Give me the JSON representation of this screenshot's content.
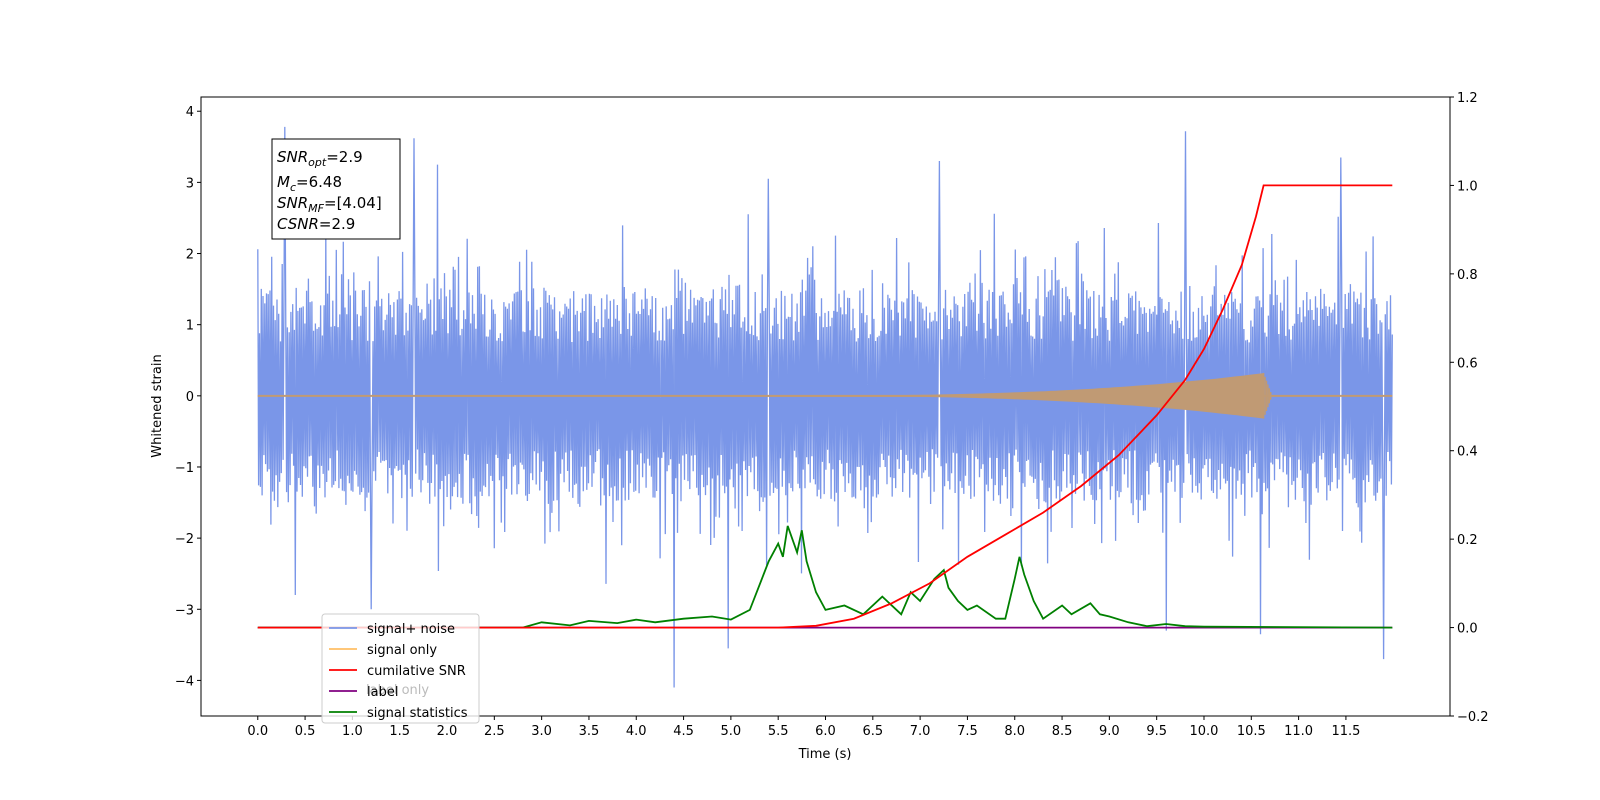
{
  "chart_data": {
    "type": "line",
    "xlabel": "Time (s)",
    "ylabel": "Whitened strain",
    "xlim": [
      -0.6,
      12.6
    ],
    "ylim": [
      -4.5,
      4.2
    ],
    "ylim_right": [
      -0.2,
      1.2
    ],
    "x_ticks": [
      "0.0",
      "0.5",
      "1.0",
      "1.5",
      "2.0",
      "2.5",
      "3.0",
      "3.5",
      "4.0",
      "4.5",
      "5.0",
      "5.5",
      "6.0",
      "6.5",
      "7.0",
      "7.5",
      "8.0",
      "8.5",
      "9.0",
      "9.5",
      "10.0",
      "10.5",
      "11.0",
      "11.5"
    ],
    "y_ticks_left": [
      "−4",
      "−3",
      "−2",
      "−1",
      "0",
      "1",
      "2",
      "3",
      "4"
    ],
    "y_ticks_right": [
      "−0.2",
      "0.0",
      "0.2",
      "0.4",
      "0.6",
      "0.8",
      "1.0",
      "1.2"
    ],
    "annotation": {
      "snr_opt": {
        "name": "SNR",
        "sub": "opt",
        "value": "=2.9"
      },
      "mc": {
        "name": "M",
        "sub": "c",
        "value": "=6.48"
      },
      "snr_mf": {
        "name": "SNR",
        "sub": "MF",
        "value": "=[4.04]"
      },
      "csnr": {
        "name": "CSNR",
        "value": "=2.9"
      }
    },
    "legend": {
      "placement": "lower-left",
      "entries": [
        "signal+ noise",
        "signal only",
        "cumilative SNR",
        "label",
        "signal statistics"
      ]
    },
    "ghost_text": "label only",
    "series": [
      {
        "name": "signal+ noise",
        "axis": "left",
        "color": "#7a96e8",
        "x_range": [
          0.0,
          11.99
        ],
        "band": [
          -1.5,
          1.5
        ],
        "spikes": [
          {
            "x": 0.29,
            "y": 3.78
          },
          {
            "x": 1.65,
            "y": 3.62
          },
          {
            "x": 9.8,
            "y": 3.72
          },
          {
            "x": 11.45,
            "y": 3.35
          },
          {
            "x": 1.9,
            "y": 3.25
          },
          {
            "x": 7.2,
            "y": 3.3
          },
          {
            "x": 5.4,
            "y": 3.05
          },
          {
            "x": 4.4,
            "y": -4.1
          },
          {
            "x": 11.9,
            "y": -3.7
          },
          {
            "x": 4.97,
            "y": -3.55
          },
          {
            "x": 10.6,
            "y": -3.35
          },
          {
            "x": 9.6,
            "y": -3.3
          },
          {
            "x": 1.2,
            "y": -3.0
          },
          {
            "x": 0.4,
            "y": -2.8
          }
        ]
      },
      {
        "name": "signal only",
        "axis": "left",
        "color": "#c09a74",
        "x_range": [
          0.0,
          11.99
        ],
        "baseline": 0.0,
        "chirp_peak_x": 10.63,
        "chirp_peak_amp": 0.32
      },
      {
        "name": "cumilative SNR",
        "axis": "right",
        "color": "#ff0000",
        "x": [
          0.0,
          5.5,
          5.9,
          6.3,
          6.7,
          7.1,
          7.5,
          7.9,
          8.3,
          8.7,
          9.1,
          9.5,
          9.8,
          10.0,
          10.2,
          10.4,
          10.55,
          10.63,
          11.99
        ],
        "y": [
          0.0,
          0.0,
          0.004,
          0.02,
          0.055,
          0.1,
          0.16,
          0.21,
          0.26,
          0.32,
          0.39,
          0.48,
          0.56,
          0.63,
          0.72,
          0.82,
          0.93,
          1.0,
          1.0
        ]
      },
      {
        "name": "label",
        "axis": "right",
        "color": "#800080",
        "x": [
          0.0,
          11.99
        ],
        "y": [
          0.0,
          0.0
        ]
      },
      {
        "name": "signal statistics",
        "axis": "right",
        "color": "#008000",
        "x": [
          0.0,
          2.8,
          3.0,
          3.3,
          3.5,
          3.8,
          4.0,
          4.2,
          4.5,
          4.8,
          5.0,
          5.2,
          5.4,
          5.5,
          5.55,
          5.6,
          5.7,
          5.75,
          5.8,
          5.9,
          6.0,
          6.2,
          6.4,
          6.6,
          6.8,
          6.9,
          7.0,
          7.15,
          7.25,
          7.3,
          7.4,
          7.5,
          7.6,
          7.8,
          7.9,
          8.0,
          8.05,
          8.1,
          8.2,
          8.3,
          8.5,
          8.6,
          8.8,
          8.9,
          9.0,
          9.2,
          9.4,
          9.6,
          9.8,
          10.0,
          11.99
        ],
        "y": [
          0.0,
          0.0,
          0.012,
          0.005,
          0.015,
          0.01,
          0.018,
          0.012,
          0.02,
          0.025,
          0.018,
          0.04,
          0.15,
          0.19,
          0.16,
          0.23,
          0.17,
          0.22,
          0.15,
          0.08,
          0.04,
          0.05,
          0.03,
          0.07,
          0.03,
          0.08,
          0.06,
          0.11,
          0.13,
          0.09,
          0.06,
          0.04,
          0.05,
          0.02,
          0.02,
          0.11,
          0.16,
          0.12,
          0.06,
          0.02,
          0.05,
          0.03,
          0.055,
          0.03,
          0.025,
          0.012,
          0.003,
          0.008,
          0.003,
          0.002,
          0.0
        ]
      }
    ]
  }
}
